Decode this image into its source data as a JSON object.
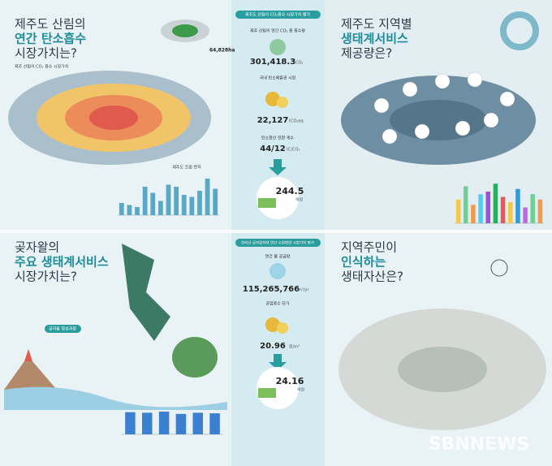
{
  "top_left": {
    "title": [
      "제주도 산림의",
      "연간 탄소흡수",
      "시장가치는?"
    ],
    "area": "64,828ha",
    "map_legend": "제주 산림의 CO₂ 흡수 시장가치",
    "planting_chart": {
      "type": "bar",
      "title": "제주도 조림 면적",
      "values": [
        30,
        25,
        20,
        70,
        55,
        35,
        75,
        70,
        50,
        45,
        60,
        90,
        65
      ],
      "color": "#5aa8c8",
      "ylim": [
        0,
        100
      ]
    }
  },
  "middle_top": {
    "header": "제주도 산림의 CO₂흡수 시장가치 평가",
    "items": [
      {
        "label": "제주 산림의 연간 CO₂ 총 흡수량",
        "value": "301,418.3",
        "unit": "tCO₂"
      },
      {
        "label": "국내 탄소배출권 시장",
        "value": "22,127",
        "unit": "tCO₂eq"
      },
      {
        "label": "탄소환산 전환 계수",
        "value": "44/12",
        "unit": "tC/CO₂"
      }
    ],
    "result": {
      "value": "244.5",
      "unit": "억원"
    }
  },
  "middle_bottom": {
    "header": "한라산 곶자왈지대 연간 수원함양 시장가치 평가",
    "items": [
      {
        "label": "연간 물 공급량",
        "value": "115,265,766",
        "unit": "m³/yr"
      },
      {
        "label": "공업용수 단가",
        "value": "20.96",
        "unit": "원/m³"
      }
    ],
    "result": {
      "value": "24.16",
      "unit": "억원"
    }
  },
  "top_right": {
    "title": [
      "제주도 지역별",
      "생태계서비스",
      "제공량은?"
    ],
    "service_chart": {
      "type": "bar",
      "values": [
        45,
        70,
        35,
        55,
        60,
        75,
        50,
        40,
        65,
        30,
        55,
        45
      ],
      "colors": [
        "#f2c94c",
        "#6fcf97",
        "#f2994a",
        "#56ccf2",
        "#9b51e0",
        "#27ae60",
        "#eb5757",
        "#f2c94c",
        "#2d9cdb",
        "#bb6bd9",
        "#6fcf97",
        "#f2994a"
      ],
      "ylim": [
        0,
        100
      ]
    }
  },
  "bottom_left": {
    "title": [
      "곶자왈의",
      "주요 생태계서비스",
      "시장가치는?"
    ],
    "process_label": "곶자왈 형성과정",
    "water_chart": {
      "type": "bar",
      "values": [
        78,
        76,
        80,
        72,
        76,
        74
      ],
      "color": "#3a7fd0",
      "ylim": [
        0,
        100
      ]
    }
  },
  "bottom_right": {
    "title": [
      "지역주민이",
      "인식하는",
      "생태자산은?"
    ]
  },
  "watermark": "SBNNEWS"
}
